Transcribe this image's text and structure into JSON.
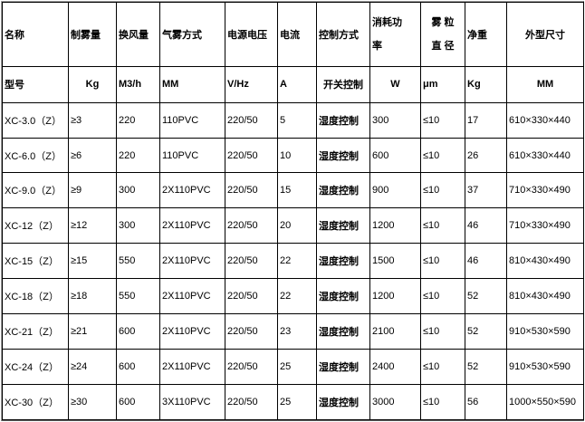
{
  "header": [
    "名称",
    "制雾量",
    "换风量",
    "气雾方式",
    "电源电压",
    "电流",
    "控制方式",
    "消耗功率",
    "雾粒直径",
    "净重",
    "外型尺寸"
  ],
  "header_split": {
    "power": [
      "消耗功",
      "率"
    ],
    "particle": [
      "雾 粒",
      "直 径"
    ]
  },
  "units": [
    "型号",
    "Kg",
    "M3/h",
    "MM",
    "V/Hz",
    "A",
    "开关控制",
    "W",
    "μm",
    "Kg",
    "MM"
  ],
  "rows": [
    [
      "XC-3.0（Z）",
      "≥3",
      "220",
      "110PVC",
      "220/50",
      "5",
      "湿度控制",
      "300",
      "≤10",
      "17",
      "610×330×440"
    ],
    [
      "XC-6.0（Z）",
      "≥6",
      "220",
      "110PVC",
      "220/50",
      "10",
      "湿度控制",
      "600",
      "≤10",
      "26",
      "610×330×440"
    ],
    [
      "XC-9.0（Z）",
      "≥9",
      "300",
      "2X110PVC",
      "220/50",
      "15",
      "湿度控制",
      "900",
      "≤10",
      "37",
      "710×330×490"
    ],
    [
      "XC-12（Z）",
      "≥12",
      "300",
      "2X110PVC",
      "220/50",
      "20",
      "湿度控制",
      "1200",
      "≤10",
      "46",
      "710×330×490"
    ],
    [
      "XC-15（Z）",
      "≥15",
      "550",
      "2X110PVC",
      "220/50",
      "22",
      "湿度控制",
      "1500",
      "≤10",
      "46",
      "810×430×490"
    ],
    [
      "XC-18（Z）",
      "≥18",
      "550",
      "2X110PVC",
      "220/50",
      "22",
      "湿度控制",
      "1200",
      "≤10",
      "52",
      "810×430×490"
    ],
    [
      "XC-21（Z）",
      "≥21",
      "600",
      "2X110PVC",
      "220/50",
      "23",
      "湿度控制",
      "2100",
      "≤10",
      "52",
      "910×530×590"
    ],
    [
      "XC-24（Z）",
      "≥24",
      "600",
      "2X110PVC",
      "220/50",
      "25",
      "湿度控制",
      "2400",
      "≤10",
      "52",
      "910×530×590"
    ],
    [
      "XC-30（Z）",
      "≥30",
      "600",
      "3X110PVC",
      "220/50",
      "25",
      "湿度控制",
      "3000",
      "≤10",
      "56",
      "1000×550×590"
    ]
  ]
}
